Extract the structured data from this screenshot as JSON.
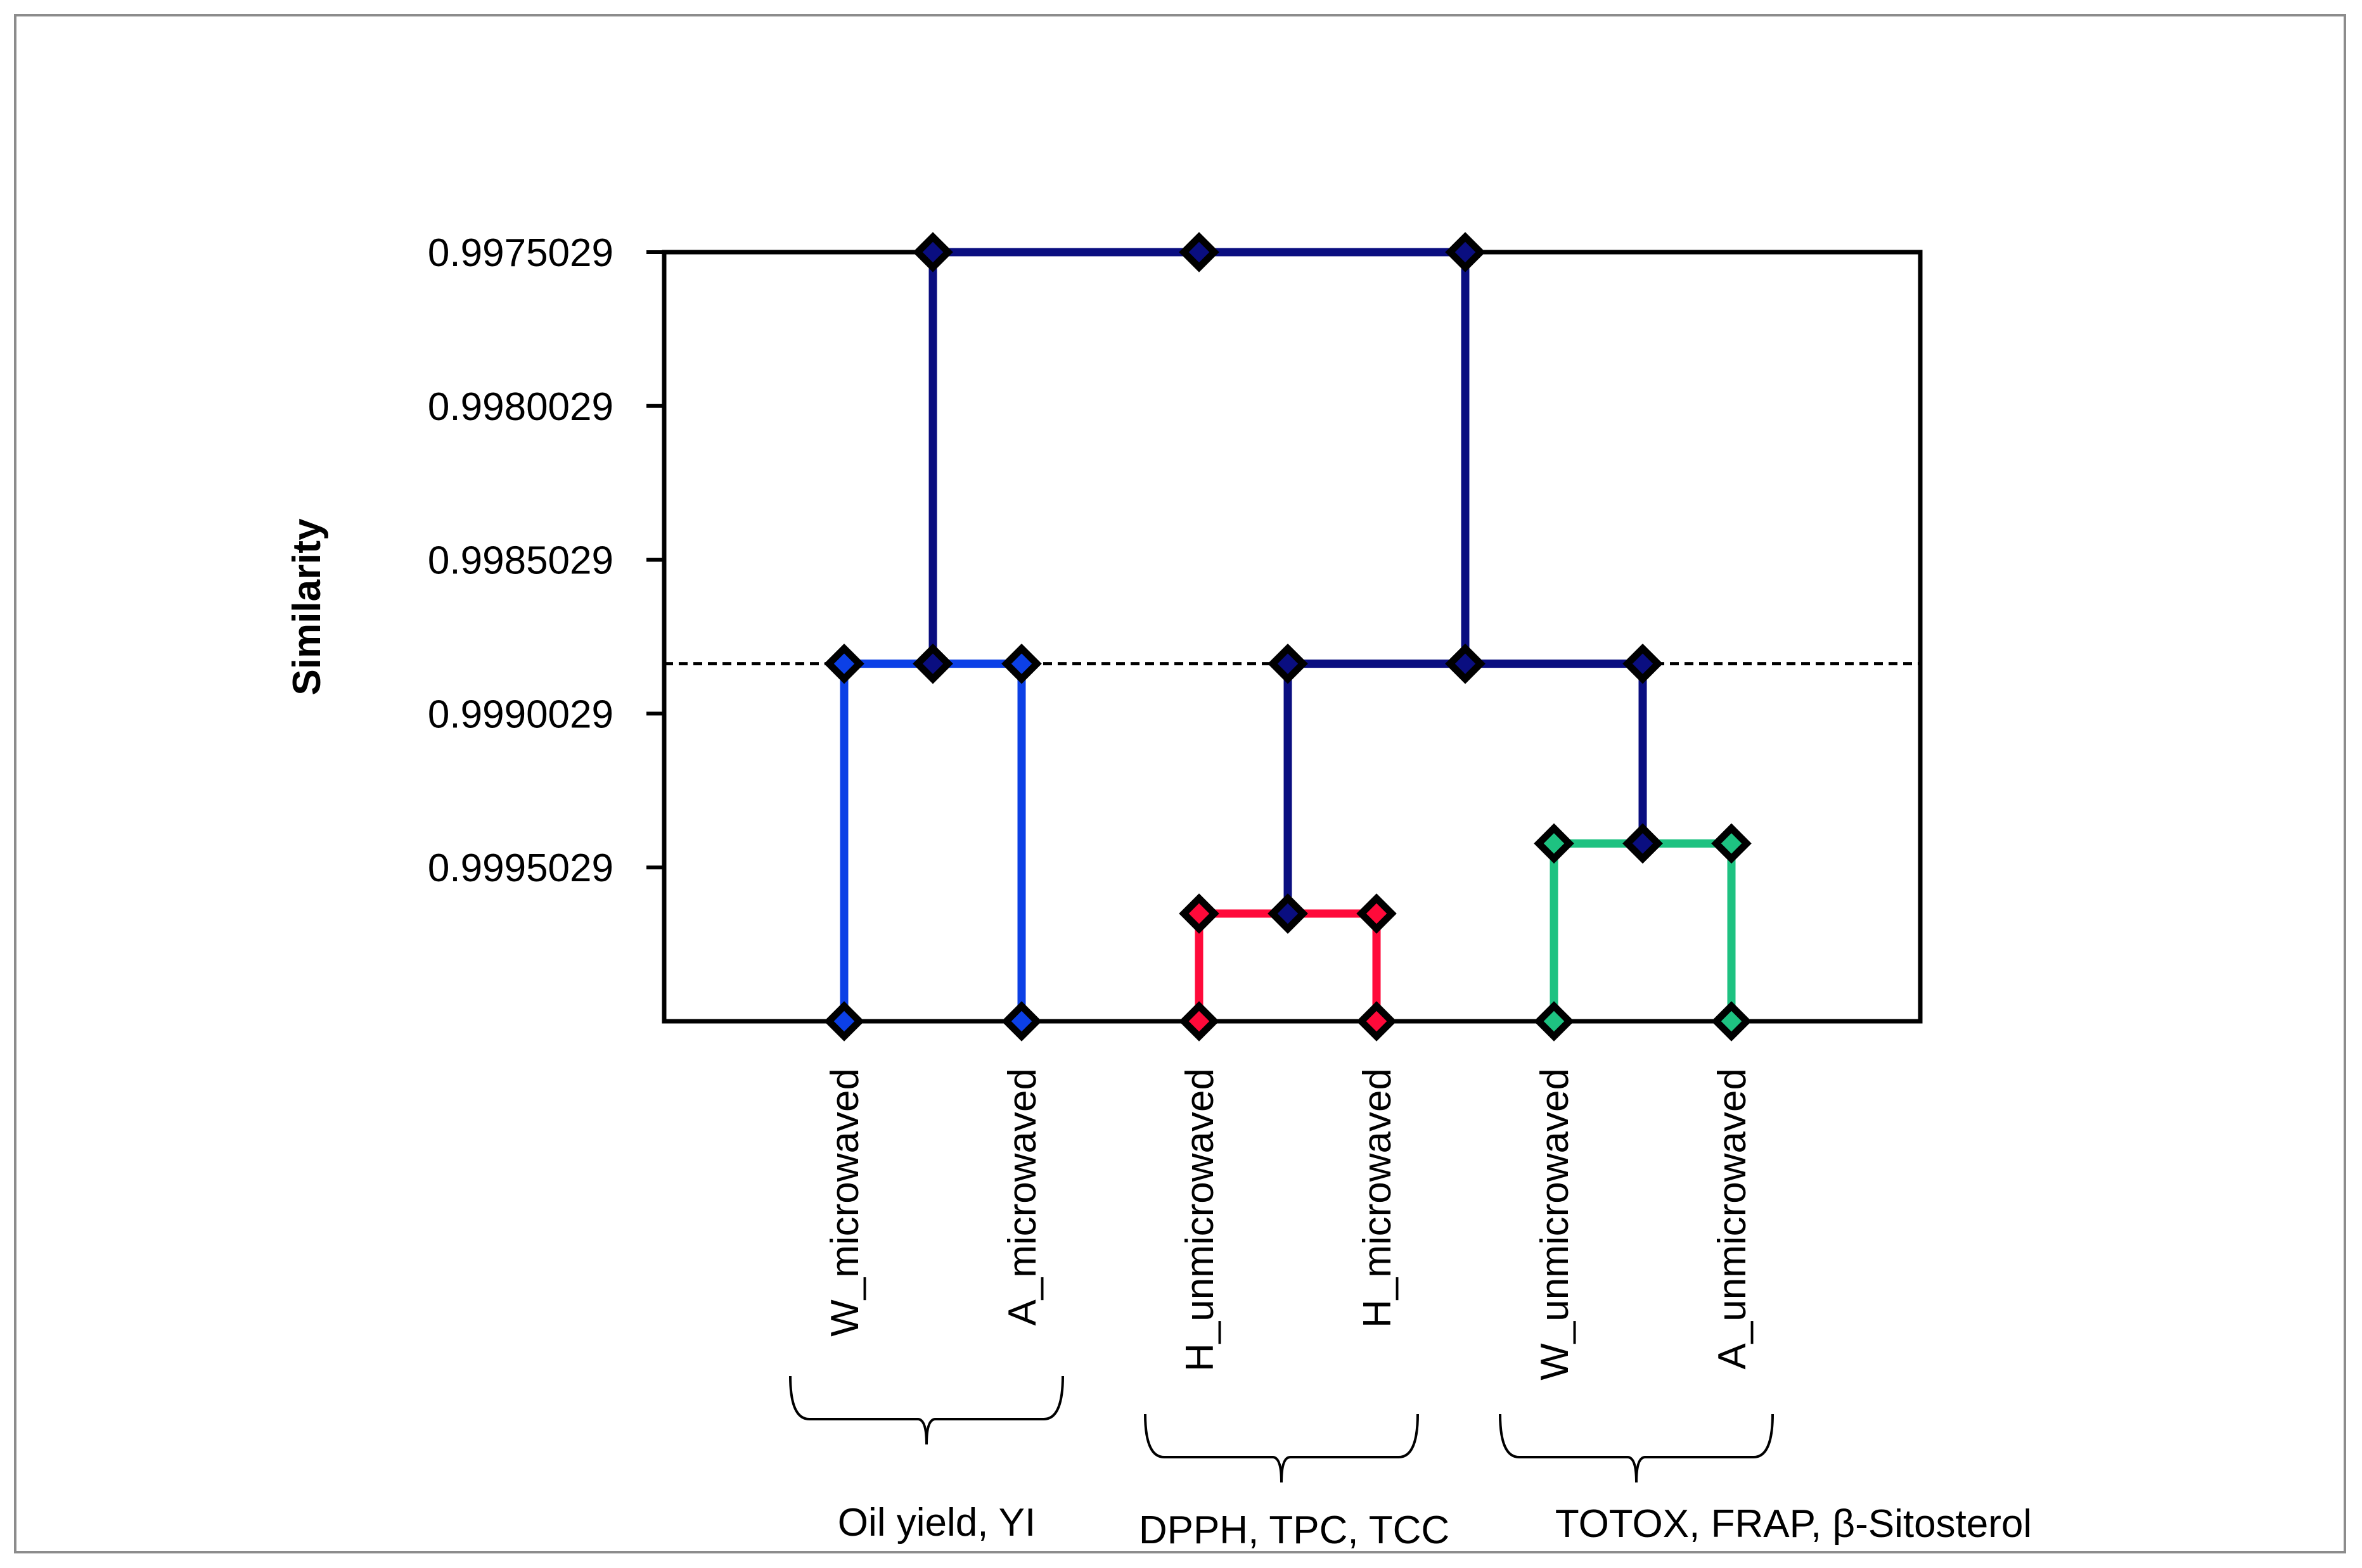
{
  "chart_data": {
    "type": "dendrogram",
    "title": "",
    "ylabel": "Similarity",
    "xlabel": "",
    "ylim": [
      0.9975029,
      1.0000029
    ],
    "y_ticks": [
      0.9975029,
      0.9980029,
      0.9985029,
      0.9990029,
      0.9995029
    ],
    "y_tick_labels": [
      "0.9975029",
      "0.9980029",
      "0.9985029",
      "0.9990029",
      "0.9995029"
    ],
    "leaves": [
      "W_microwaved",
      "A_microwaved",
      "H_unmicrowaved",
      "H_microwaved",
      "W_unmicrowaved",
      "A_unmicrowaved"
    ],
    "cutoff_similarity": 0.9988408,
    "merges": [
      {
        "left": "H_unmicrowaved",
        "right": "H_microwaved",
        "similarity": 0.9996529,
        "color": "#ff0a3a"
      },
      {
        "left": "W_unmicrowaved",
        "right": "A_unmicrowaved",
        "similarity": 0.9994249,
        "color": "#1ec281"
      },
      {
        "left": "W_microwaved",
        "right": "A_microwaved",
        "similarity": 0.9988408,
        "color": "#0c40e6"
      },
      {
        "left": "H_unmicrowaved+H_microwaved",
        "right": "W_unmicrowaved+A_unmicrowaved",
        "similarity": 0.9988408,
        "color": "#0a0e80"
      },
      {
        "left": "W_microwaved+A_microwaved",
        "right": "H_unmicrowaved+H_microwaved+W_unmicrowaved+A_unmicrowaved",
        "similarity": 0.9975029,
        "color": "#0a0e80"
      }
    ],
    "group_annotations": [
      {
        "label": "Oil yield, YI",
        "members": [
          "W_microwaved",
          "A_microwaved"
        ]
      },
      {
        "label": "DPPH, TPC, TCC",
        "members": [
          "H_unmicrowaved",
          "H_microwaved"
        ]
      },
      {
        "label": "TOTOX, FRAP, β-Sitosterol",
        "members": [
          "W_unmicrowaved",
          "A_unmicrowaved"
        ]
      }
    ],
    "grid": false,
    "legend": "none"
  }
}
